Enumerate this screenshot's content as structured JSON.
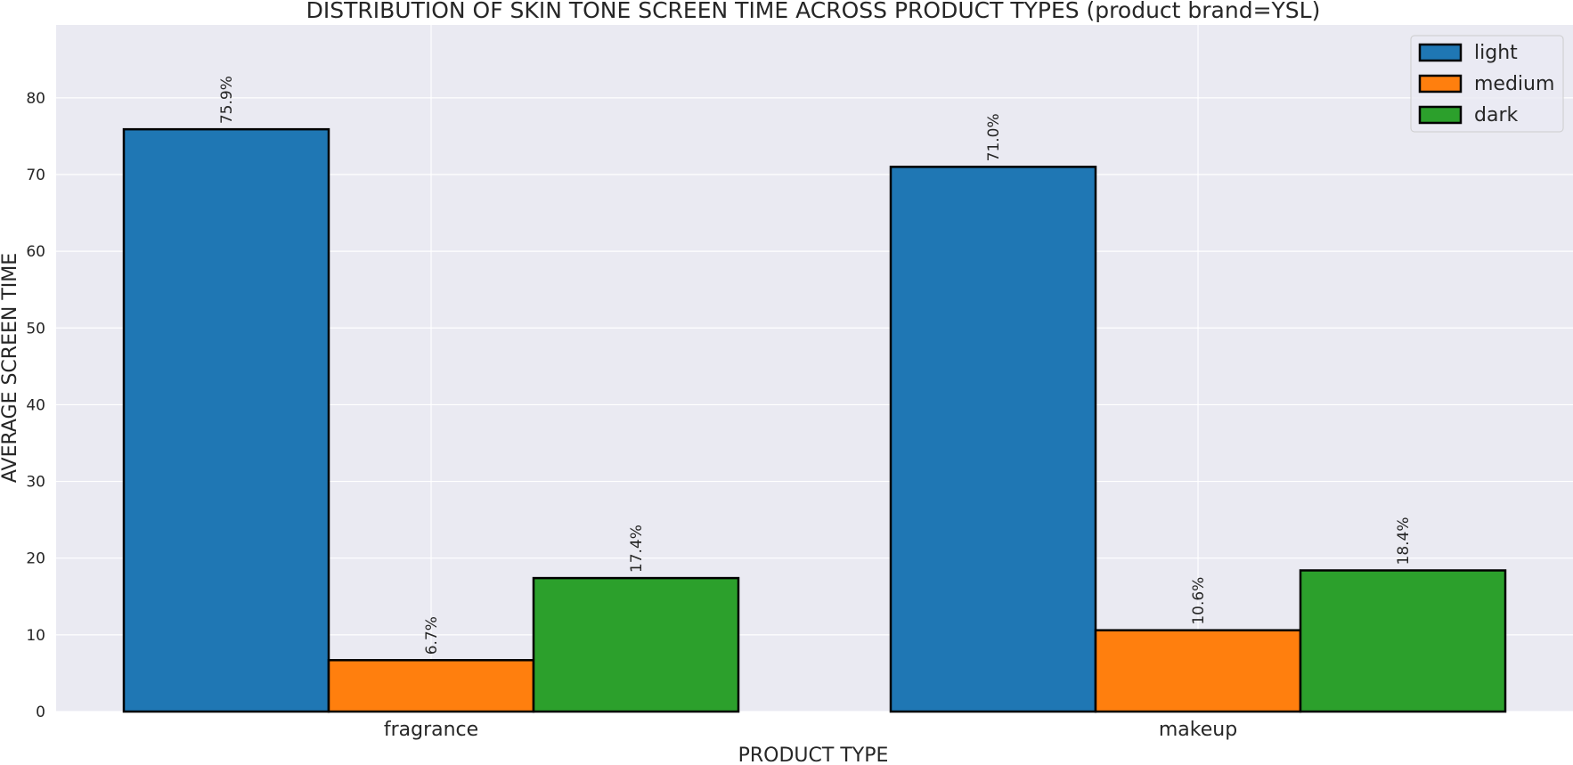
{
  "chart_data": {
    "type": "bar",
    "title": "DISTRIBUTION OF SKIN TONE SCREEN TIME ACROSS PRODUCT TYPES (product brand=YSL)",
    "xlabel": "PRODUCT TYPE",
    "ylabel": "AVERAGE SCREEN TIME",
    "categories": [
      "fragrance",
      "makeup"
    ],
    "series": [
      {
        "name": "light",
        "values": [
          75.9,
          71.0
        ],
        "color": "#1f77b4",
        "labels": [
          "75.9%",
          "71.0%"
        ]
      },
      {
        "name": "medium",
        "values": [
          6.7,
          10.6
        ],
        "color": "#ff7f0e",
        "labels": [
          "6.7%",
          "10.6%"
        ]
      },
      {
        "name": "dark",
        "values": [
          17.4,
          18.4
        ],
        "color": "#2ca02c",
        "labels": [
          "17.4%",
          "18.4%"
        ]
      }
    ],
    "ylim": [
      0,
      89.5
    ],
    "yticks": [
      0,
      10,
      20,
      30,
      40,
      50,
      60,
      70,
      80
    ],
    "grid": true,
    "legend_position": "top-right",
    "background_color": "#eaeaf2",
    "grid_color": "#ffffff",
    "bar_edge_color": "#000000"
  }
}
